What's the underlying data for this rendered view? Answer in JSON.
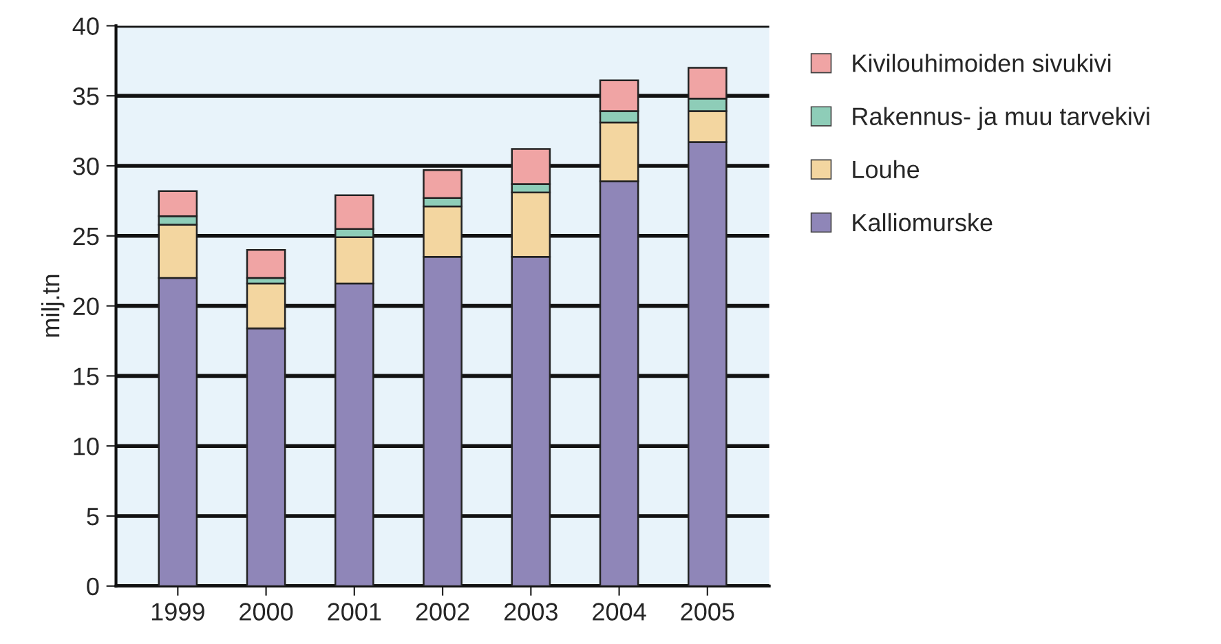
{
  "chart_data": {
    "type": "bar",
    "stacked": true,
    "ylabel": "milj.tn",
    "categories": [
      "1999",
      "2000",
      "2001",
      "2002",
      "2003",
      "2004",
      "2005"
    ],
    "series": [
      {
        "name": "Kalliomurske",
        "color": "#8f86b8",
        "values": [
          22.0,
          18.4,
          21.6,
          23.5,
          23.5,
          28.9,
          31.7
        ]
      },
      {
        "name": "Louhe",
        "color": "#f3d6a0",
        "values": [
          3.8,
          3.2,
          3.3,
          3.6,
          4.6,
          4.2,
          2.2
        ]
      },
      {
        "name": "Rakennus- ja muu tarvekivi",
        "color": "#8ecdb8",
        "values": [
          0.6,
          0.4,
          0.6,
          0.6,
          0.6,
          0.8,
          0.9
        ]
      },
      {
        "name": "Kivilouhimoiden sivukivi",
        "color": "#f0a4a4",
        "values": [
          1.8,
          2.0,
          2.4,
          2.0,
          2.5,
          2.2,
          2.2
        ]
      }
    ],
    "ylim": [
      0,
      40
    ],
    "yticks": [
      0,
      5,
      10,
      15,
      20,
      25,
      30,
      35,
      40
    ],
    "grid": "y",
    "legend": "right"
  }
}
